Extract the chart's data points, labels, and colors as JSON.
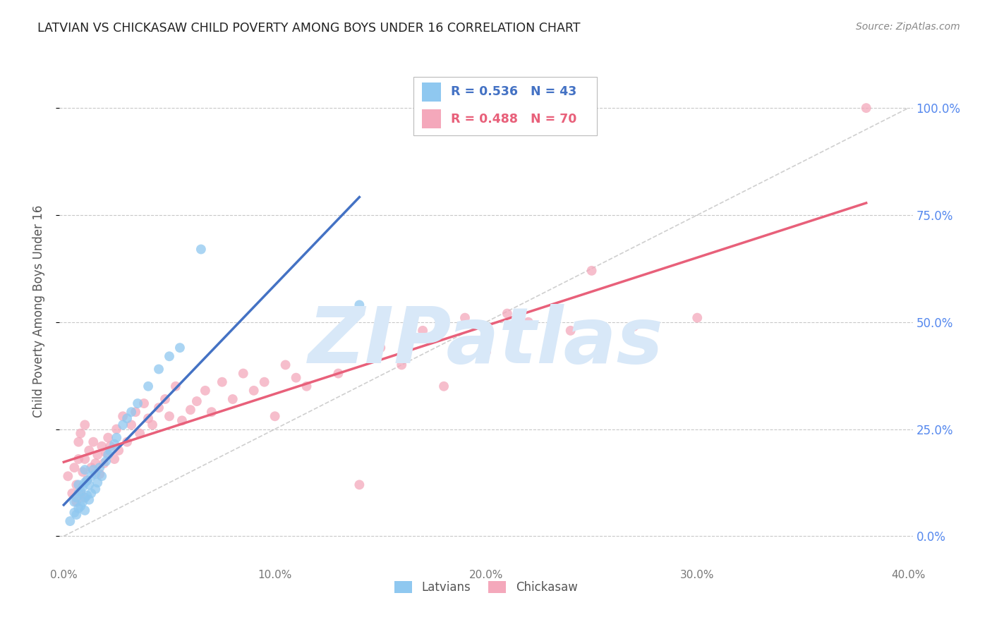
{
  "title": "LATVIAN VS CHICKASAW CHILD POVERTY AMONG BOYS UNDER 16 CORRELATION CHART",
  "source": "Source: ZipAtlas.com",
  "ylabel": "Child Poverty Among Boys Under 16",
  "xlim": [
    -0.002,
    0.402
  ],
  "ylim": [
    -0.07,
    1.12
  ],
  "yticks": [
    0.0,
    0.25,
    0.5,
    0.75,
    1.0
  ],
  "ytick_labels": [
    "0.0%",
    "25.0%",
    "50.0%",
    "75.0%",
    "100.0%"
  ],
  "xticks": [
    0.0,
    0.1,
    0.2,
    0.3,
    0.4
  ],
  "xtick_labels": [
    "0.0%",
    "10.0%",
    "20.0%",
    "30.0%",
    "40.0%"
  ],
  "latvian_R": 0.536,
  "latvian_N": 43,
  "chickasaw_R": 0.488,
  "chickasaw_N": 70,
  "latvian_color": "#8FC8F0",
  "chickasaw_color": "#F4A8BB",
  "latvian_line_color": "#4472C4",
  "chickasaw_line_color": "#E8607A",
  "background_color": "#FFFFFF",
  "grid_color": "#C8C8C8",
  "title_color": "#222222",
  "axis_label_color": "#555555",
  "right_tick_color": "#5588EE",
  "watermark_color": "#D8E8F8",
  "watermark_text": "ZIPatlas",
  "ref_line_color": "#BBBBBB",
  "latvian_x": [
    0.003,
    0.005,
    0.005,
    0.006,
    0.006,
    0.007,
    0.007,
    0.007,
    0.008,
    0.008,
    0.009,
    0.009,
    0.01,
    0.01,
    0.01,
    0.01,
    0.011,
    0.011,
    0.012,
    0.012,
    0.013,
    0.013,
    0.014,
    0.015,
    0.015,
    0.016,
    0.017,
    0.018,
    0.02,
    0.021,
    0.022,
    0.024,
    0.025,
    0.028,
    0.03,
    0.032,
    0.035,
    0.04,
    0.045,
    0.05,
    0.055,
    0.065,
    0.14
  ],
  "latvian_y": [
    0.035,
    0.055,
    0.08,
    0.05,
    0.09,
    0.065,
    0.1,
    0.12,
    0.07,
    0.105,
    0.08,
    0.115,
    0.06,
    0.09,
    0.125,
    0.155,
    0.095,
    0.13,
    0.085,
    0.12,
    0.1,
    0.14,
    0.155,
    0.11,
    0.145,
    0.125,
    0.16,
    0.14,
    0.175,
    0.19,
    0.2,
    0.215,
    0.23,
    0.26,
    0.275,
    0.29,
    0.31,
    0.35,
    0.39,
    0.42,
    0.44,
    0.67,
    0.54
  ],
  "chickasaw_x": [
    0.002,
    0.004,
    0.005,
    0.006,
    0.006,
    0.007,
    0.007,
    0.008,
    0.008,
    0.009,
    0.01,
    0.01,
    0.01,
    0.011,
    0.012,
    0.013,
    0.014,
    0.015,
    0.016,
    0.017,
    0.018,
    0.019,
    0.02,
    0.021,
    0.022,
    0.024,
    0.025,
    0.026,
    0.028,
    0.03,
    0.032,
    0.034,
    0.036,
    0.038,
    0.04,
    0.042,
    0.045,
    0.048,
    0.05,
    0.053,
    0.056,
    0.06,
    0.063,
    0.067,
    0.07,
    0.075,
    0.08,
    0.085,
    0.09,
    0.095,
    0.1,
    0.105,
    0.11,
    0.115,
    0.12,
    0.13,
    0.14,
    0.15,
    0.16,
    0.17,
    0.18,
    0.19,
    0.2,
    0.21,
    0.22,
    0.24,
    0.25,
    0.27,
    0.3,
    0.38
  ],
  "chickasaw_y": [
    0.14,
    0.1,
    0.16,
    0.08,
    0.12,
    0.18,
    0.22,
    0.1,
    0.24,
    0.15,
    0.09,
    0.18,
    0.26,
    0.13,
    0.2,
    0.16,
    0.22,
    0.17,
    0.19,
    0.145,
    0.21,
    0.17,
    0.195,
    0.23,
    0.21,
    0.18,
    0.25,
    0.2,
    0.28,
    0.22,
    0.26,
    0.29,
    0.24,
    0.31,
    0.275,
    0.26,
    0.3,
    0.32,
    0.28,
    0.35,
    0.27,
    0.295,
    0.315,
    0.34,
    0.29,
    0.36,
    0.32,
    0.38,
    0.34,
    0.36,
    0.28,
    0.4,
    0.37,
    0.35,
    0.42,
    0.38,
    0.12,
    0.44,
    0.4,
    0.48,
    0.35,
    0.51,
    0.43,
    0.52,
    0.5,
    0.48,
    0.62,
    0.49,
    0.51,
    1.0
  ]
}
